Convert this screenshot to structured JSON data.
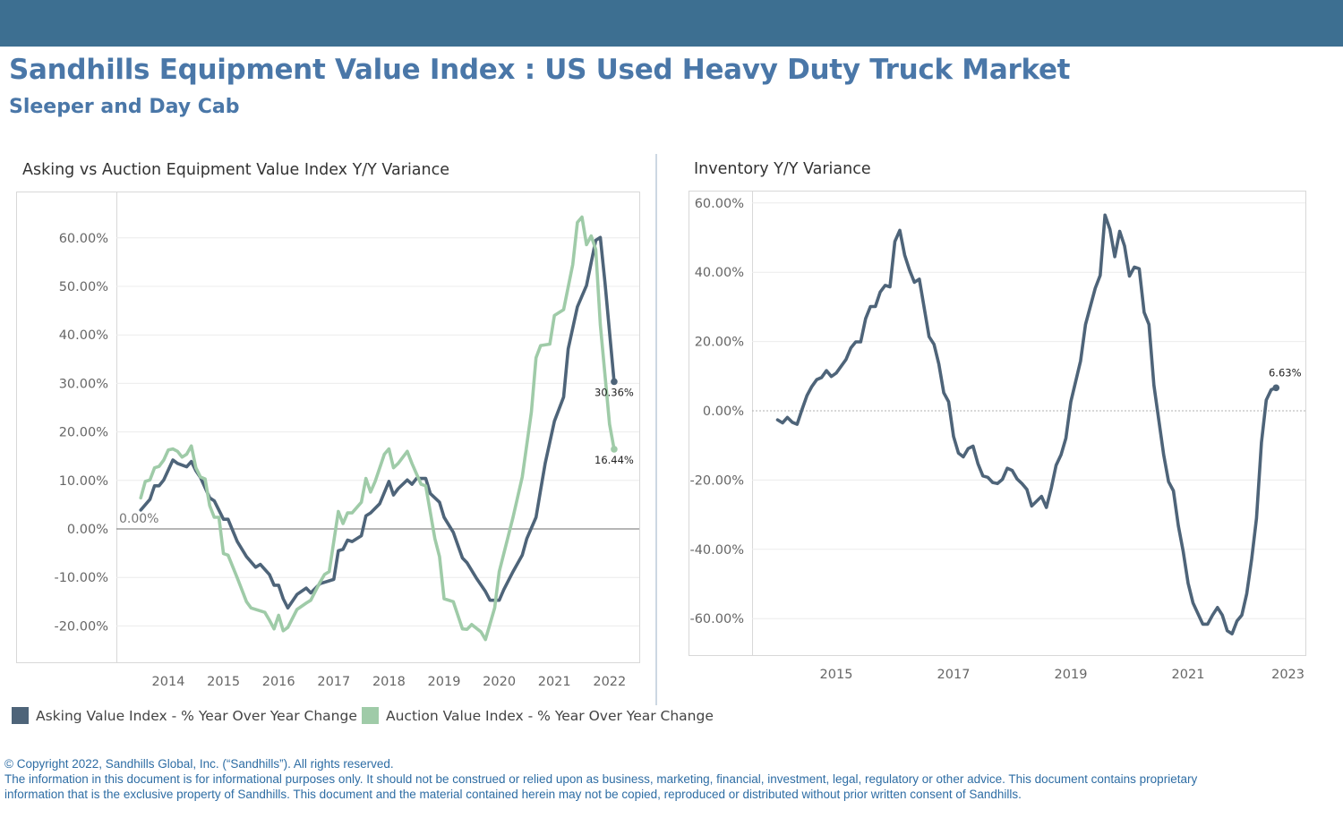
{
  "header": {
    "title": "Sandhills Equipment Value Index : US Used Heavy Duty Truck Market",
    "subtitle": "Sleeper and Day Cab",
    "bar_color": "#3d6f91",
    "title_color": "#4a77a8"
  },
  "legend": {
    "items": [
      {
        "label": "Asking Value Index - % Year Over Year Change",
        "color": "#4e6479"
      },
      {
        "label": "Auction Value Index - % Year Over Year Change",
        "color": "#9fcba8"
      }
    ]
  },
  "footer": {
    "line1": "© Copyright 2022, Sandhills Global, Inc. (“Sandhills”). All rights reserved.",
    "line2": "The information in this document is for informational purposes only.  It should not be construed or relied upon as business, marketing, financial, investment, legal, regulatory or other advice. This document contains proprietary",
    "line3": "information that is the exclusive property of Sandhills. This document and the material contained herein may not be copied, reproduced or distributed without prior written consent of Sandhills."
  },
  "chart_data": [
    {
      "type": "line",
      "title": "Asking vs Auction Equipment Value Index Y/Y Variance",
      "xlabel": "",
      "ylabel": "",
      "x_ticks": [
        "2014",
        "2015",
        "2016",
        "2017",
        "2018",
        "2019",
        "2020",
        "2021",
        "2022"
      ],
      "y_ticks": [
        {
          "value": 60,
          "label": "60.00%"
        },
        {
          "value": 50,
          "label": "50.00%"
        },
        {
          "value": 40,
          "label": "40.00%"
        },
        {
          "value": 30,
          "label": "30.00%"
        },
        {
          "value": 20,
          "label": "20.00%"
        },
        {
          "value": 10,
          "label": "10.00%"
        },
        {
          "value": 0,
          "label": "0.00%"
        },
        {
          "value": -10,
          "label": "-10.00%"
        },
        {
          "value": -20,
          "label": "-20.00%"
        }
      ],
      "ylim": [
        -27.5,
        69.5
      ],
      "xlim": [
        "2013-02",
        "2022-07"
      ],
      "grid": true,
      "legend_position": "bottom",
      "reference_line": {
        "value": 0,
        "label": "0.00%"
      },
      "series": [
        {
          "name": "Asking Value Index - % Year Over Year Change",
          "color": "#4e6479",
          "end_label": "30.36%",
          "x": [
            "2013-07",
            "2013-09",
            "2013-10",
            "2013-11",
            "2013-12",
            "2014-02",
            "2014-03",
            "2014-05",
            "2014-06",
            "2014-07",
            "2014-08",
            "2014-10",
            "2014-11",
            "2015-01",
            "2015-02",
            "2015-04",
            "2015-06",
            "2015-08",
            "2015-09",
            "2015-11",
            "2015-12",
            "2016-01",
            "2016-02",
            "2016-03",
            "2016-05",
            "2016-07",
            "2016-08",
            "2016-10",
            "2017-01",
            "2017-02",
            "2017-03",
            "2017-04",
            "2017-05",
            "2017-07",
            "2017-08",
            "2017-09",
            "2017-11",
            "2018-01",
            "2018-02",
            "2018-03",
            "2018-05",
            "2018-06",
            "2018-07",
            "2018-09",
            "2018-10",
            "2018-12",
            "2019-01",
            "2019-03",
            "2019-05",
            "2019-06",
            "2019-08",
            "2019-10",
            "2019-11",
            "2020-01",
            "2020-02",
            "2020-04",
            "2020-06",
            "2020-07",
            "2020-09",
            "2020-10",
            "2020-11",
            "2021-01",
            "2021-03",
            "2021-04",
            "2021-06",
            "2021-07",
            "2021-08",
            "2021-10",
            "2021-11",
            "2021-12",
            "2022-02"
          ],
          "values": [
            3.9,
            6.1,
            8.9,
            8.9,
            10.1,
            14.2,
            13.5,
            12.8,
            13.9,
            12.0,
            10.6,
            6.4,
            5.8,
            2.0,
            2.0,
            -2.6,
            -5.7,
            -7.9,
            -7.3,
            -9.4,
            -11.6,
            -11.6,
            -14.4,
            -16.3,
            -13.5,
            -12.2,
            -13.2,
            -11.3,
            -10.4,
            -4.5,
            -4.2,
            -2.3,
            -2.6,
            -1.4,
            2.7,
            3.3,
            5.2,
            9.8,
            7.0,
            8.3,
            10.1,
            9.2,
            10.4,
            10.4,
            7.3,
            5.5,
            2.4,
            -0.7,
            -6.0,
            -7.0,
            -10.1,
            -12.9,
            -14.7,
            -14.7,
            -12.5,
            -8.8,
            -5.4,
            -2.0,
            2.4,
            8.0,
            13.5,
            22.2,
            27.2,
            37.1,
            45.8,
            48.0,
            50.2,
            59.5,
            60.1,
            50.8,
            30.36
          ]
        },
        {
          "name": "Auction Value Index - % Year Over Year Change",
          "color": "#9fcba8",
          "end_label": "16.44%",
          "x": [
            "2013-07",
            "2013-08",
            "2013-09",
            "2013-10",
            "2013-11",
            "2013-12",
            "2014-01",
            "2014-02",
            "2014-03",
            "2014-04",
            "2014-05",
            "2014-06",
            "2014-07",
            "2014-08",
            "2014-09",
            "2014-10",
            "2014-11",
            "2014-12",
            "2015-01",
            "2015-02",
            "2015-04",
            "2015-06",
            "2015-07",
            "2015-10",
            "2015-11",
            "2015-12",
            "2016-01",
            "2016-02",
            "2016-03",
            "2016-05",
            "2016-07",
            "2016-08",
            "2016-10",
            "2016-11",
            "2016-12",
            "2017-02",
            "2017-03",
            "2017-04",
            "2017-05",
            "2017-07",
            "2017-08",
            "2017-09",
            "2017-10",
            "2017-12",
            "2018-01",
            "2018-02",
            "2018-03",
            "2018-05",
            "2018-06",
            "2018-08",
            "2018-09",
            "2018-11",
            "2018-12",
            "2019-01",
            "2019-03",
            "2019-05",
            "2019-06",
            "2019-07",
            "2019-09",
            "2019-10",
            "2019-12",
            "2020-01",
            "2020-04",
            "2020-06",
            "2020-08",
            "2020-09",
            "2020-10",
            "2020-12",
            "2021-01",
            "2021-03",
            "2021-05",
            "2021-06",
            "2021-07",
            "2021-08",
            "2021-09",
            "2021-10",
            "2021-11",
            "2022-01",
            "2022-02"
          ],
          "values": [
            6.4,
            9.8,
            10.1,
            12.6,
            12.9,
            14.2,
            16.3,
            16.5,
            16.0,
            14.8,
            15.4,
            17.1,
            12.6,
            10.7,
            10.3,
            4.8,
            2.4,
            2.4,
            -5.1,
            -5.4,
            -10.1,
            -15.0,
            -16.3,
            -17.2,
            -18.8,
            -20.6,
            -17.8,
            -21.0,
            -20.3,
            -16.6,
            -15.3,
            -14.7,
            -11.0,
            -9.4,
            -8.8,
            3.6,
            1.1,
            3.3,
            3.3,
            5.5,
            10.4,
            7.6,
            9.8,
            15.4,
            16.5,
            12.6,
            13.5,
            16.0,
            13.5,
            9.2,
            8.9,
            -2.0,
            -5.7,
            -14.4,
            -15.0,
            -20.6,
            -20.7,
            -19.7,
            -21.2,
            -22.8,
            -16.3,
            -8.8,
            2.4,
            10.7,
            24.1,
            35.3,
            37.8,
            38.1,
            44.0,
            45.2,
            54.5,
            63.2,
            64.3,
            58.6,
            60.4,
            57.6,
            42.1,
            21.6,
            16.44
          ]
        }
      ]
    },
    {
      "type": "line",
      "title": "Inventory Y/Y Variance",
      "xlabel": "",
      "ylabel": "",
      "x_ticks": [
        "2015",
        "2017",
        "2019",
        "2021",
        "2023"
      ],
      "y_ticks": [
        {
          "value": 60,
          "label": "60.00%"
        },
        {
          "value": 40,
          "label": "40.00%"
        },
        {
          "value": 20,
          "label": "20.00%"
        },
        {
          "value": 0,
          "label": "0.00%"
        },
        {
          "value": -20,
          "label": "-20.00%"
        },
        {
          "value": -40,
          "label": "-40.00%"
        },
        {
          "value": -60,
          "label": "-60.00%"
        }
      ],
      "ylim": [
        -70.5,
        63.5
      ],
      "xlim": [
        "2013-07",
        "2023-01"
      ],
      "grid": true,
      "reference_line": {
        "value": 0,
        "style": "dashed"
      },
      "series": [
        {
          "color": "#4e6479",
          "end_label": "6.63%",
          "x": [
            "2014-01",
            "2014-02",
            "2014-03",
            "2014-04",
            "2014-05",
            "2014-06",
            "2014-07",
            "2014-08",
            "2014-09",
            "2014-10",
            "2014-11",
            "2014-12",
            "2015-01",
            "2015-03",
            "2015-04",
            "2015-05",
            "2015-06",
            "2015-07",
            "2015-08",
            "2015-09",
            "2015-10",
            "2015-11",
            "2015-12",
            "2016-01",
            "2016-02",
            "2016-03",
            "2016-04",
            "2016-05",
            "2016-06",
            "2016-08",
            "2016-09",
            "2016-10",
            "2016-11",
            "2016-12",
            "2017-01",
            "2017-02",
            "2017-03",
            "2017-04",
            "2017-05",
            "2017-06",
            "2017-07",
            "2017-08",
            "2017-09",
            "2017-10",
            "2017-11",
            "2017-12",
            "2018-01",
            "2018-02",
            "2018-03",
            "2018-04",
            "2018-05",
            "2018-07",
            "2018-08",
            "2018-09",
            "2018-10",
            "2018-11",
            "2018-12",
            "2019-01",
            "2019-03",
            "2019-04",
            "2019-06",
            "2019-07",
            "2019-08",
            "2019-09",
            "2019-10",
            "2019-11",
            "2019-12",
            "2020-01",
            "2020-02",
            "2020-03",
            "2020-04",
            "2020-05",
            "2020-06",
            "2020-08",
            "2020-09",
            "2020-10",
            "2020-11",
            "2020-12",
            "2021-01",
            "2021-02",
            "2021-04",
            "2021-05",
            "2021-06",
            "2021-07",
            "2021-08",
            "2021-09",
            "2021-10",
            "2021-11",
            "2021-12",
            "2022-01",
            "2022-02",
            "2022-03",
            "2022-04",
            "2022-05",
            "2022-06",
            "2022-07"
          ],
          "values": [
            -2.6,
            -3.5,
            -1.9,
            -3.3,
            -3.9,
            0.4,
            4.4,
            7.0,
            9.0,
            9.6,
            11.6,
            9.9,
            10.9,
            14.8,
            18.2,
            19.9,
            19.9,
            26.6,
            30.1,
            30.1,
            34.3,
            36.2,
            35.8,
            48.9,
            52.1,
            45.0,
            40.6,
            37.1,
            38.0,
            21.4,
            19.2,
            13.5,
            5.2,
            2.6,
            -7.4,
            -12.2,
            -13.3,
            -10.9,
            -10.2,
            -15.3,
            -18.8,
            -19.2,
            -20.7,
            -21.0,
            -19.8,
            -16.6,
            -17.2,
            -19.7,
            -21.0,
            -22.7,
            -27.5,
            -24.7,
            -27.9,
            -22.3,
            -15.7,
            -12.7,
            -7.9,
            2.6,
            14.4,
            24.9,
            35.4,
            39.1,
            56.5,
            52.4,
            44.5,
            51.8,
            47.6,
            38.9,
            41.5,
            41.0,
            28.4,
            24.9,
            7.4,
            -12.7,
            -20.5,
            -23.1,
            -33.2,
            -40.6,
            -49.8,
            -55.5,
            -61.6,
            -61.6,
            -59.0,
            -56.8,
            -59.0,
            -63.5,
            -64.4,
            -60.7,
            -59.0,
            -52.8,
            -42.8,
            -31.0,
            -9.2,
            3.1,
            6.1,
            6.63
          ]
        }
      ]
    }
  ]
}
